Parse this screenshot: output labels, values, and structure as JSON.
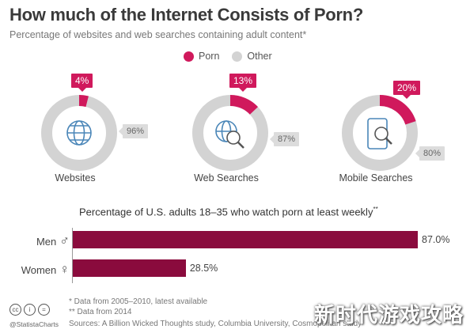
{
  "header": {
    "title": "How much of the Internet Consists of Porn?",
    "subtitle": "Percentage of websites and web searches containing adult content*"
  },
  "legend": {
    "items": [
      {
        "label": "Porn",
        "color": "#d0195c"
      },
      {
        "label": "Other",
        "color": "#d3d3d3"
      }
    ]
  },
  "chart_data": [
    {
      "type": "pie",
      "title": "Websites",
      "slices": [
        {
          "name": "Porn",
          "value": 4
        },
        {
          "name": "Other",
          "value": 96
        }
      ],
      "porn_label": "4%",
      "other_label": "96%",
      "icon": "globe-icon"
    },
    {
      "type": "pie",
      "title": "Web Searches",
      "slices": [
        {
          "name": "Porn",
          "value": 13
        },
        {
          "name": "Other",
          "value": 87
        }
      ],
      "porn_label": "13%",
      "other_label": "87%",
      "icon": "globe-search-icon"
    },
    {
      "type": "pie",
      "title": "Mobile Searches",
      "slices": [
        {
          "name": "Porn",
          "value": 20
        },
        {
          "name": "Other",
          "value": 80
        }
      ],
      "porn_label": "20%",
      "other_label": "80%",
      "icon": "mobile-search-icon"
    },
    {
      "type": "bar",
      "title": "Percentage of U.S. adults 18–35 who watch porn at least weekly",
      "title_mark": "**",
      "categories": [
        "Men",
        "Women"
      ],
      "category_symbols": [
        "♂",
        "♀"
      ],
      "values": [
        87.0,
        28.5
      ],
      "value_labels": [
        "87.0%",
        "28.5%"
      ],
      "xlim": [
        0,
        87.0
      ],
      "color": "#8a0b3d"
    }
  ],
  "footer": {
    "note1": "*   Data from 2005–2010, latest available",
    "note2": "** Data from 2014",
    "source": "Sources: A Billion Wicked Thoughts study, Columbia University, Cosmopolitan study",
    "brand": "@StatistaCharts",
    "cc_icons": [
      "cc",
      "i",
      "="
    ],
    "watermark": "新时代游戏攻略"
  }
}
